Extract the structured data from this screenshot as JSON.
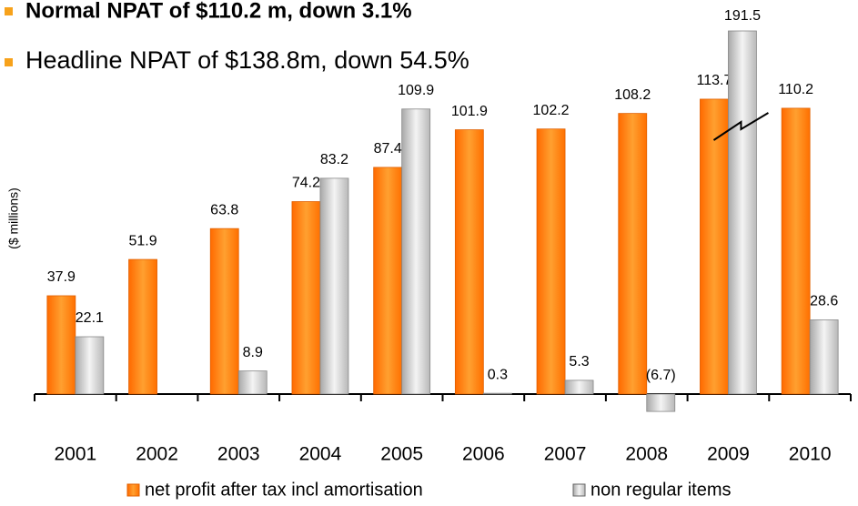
{
  "bullets": [
    "Normal NPAT of $110.2 m, down 3.1%",
    "Headline NPAT of $138.8m, down 54.5%"
  ],
  "chart_data": {
    "type": "bar",
    "y_label": "($ millions)",
    "categories": [
      "2001",
      "2002",
      "2003",
      "2004",
      "2005",
      "2006",
      "2007",
      "2008",
      "2009",
      "2010"
    ],
    "series": [
      {
        "name": "net profit after tax incl amortisation",
        "color": "#ff8000",
        "values": [
          37.9,
          51.9,
          63.8,
          74.2,
          87.4,
          101.9,
          102.2,
          108.2,
          113.7,
          110.2
        ]
      },
      {
        "name": "non regular items",
        "color": "#d4d4d4",
        "values": [
          22.1,
          null,
          8.9,
          83.2,
          109.9,
          0.3,
          5.3,
          -6.7,
          191.5,
          28.6
        ],
        "value_labels": [
          "22.1",
          null,
          "8.9",
          "83.2",
          "109.9",
          "0.3",
          "5.3",
          "(6.7)",
          "191.5",
          "28.6"
        ]
      }
    ],
    "ylim": [
      -10,
      140
    ]
  }
}
